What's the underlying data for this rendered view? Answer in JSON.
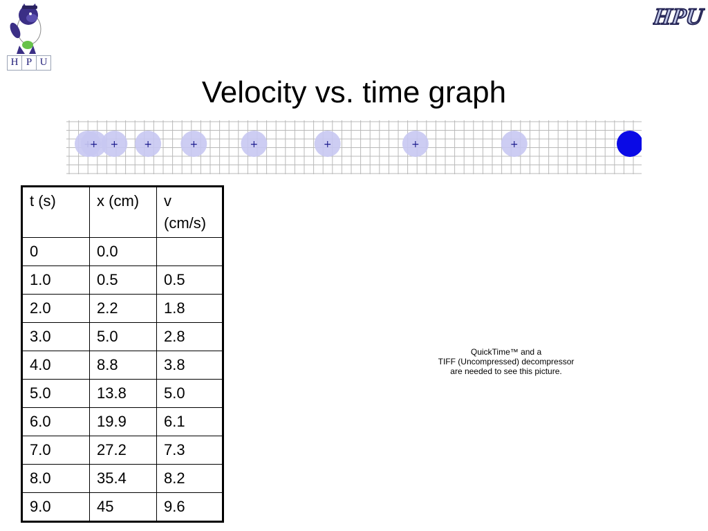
{
  "header": {
    "title": "Velocity vs. time graph",
    "mascot_letters": [
      "H",
      "P",
      "U"
    ],
    "logo_text": "HPU"
  },
  "colors": {
    "ghost_ball": "#c8c8f2",
    "current_ball": "#0a0ae6",
    "grid_line": "#b9b9b9",
    "cross_mark": "#1a1a8c"
  },
  "motion_strip": {
    "ghost_marker": "+",
    "ghost_positions_cm": [
      0.0,
      0.5,
      2.2,
      5.0,
      8.8,
      13.8,
      19.9,
      27.2,
      35.4
    ],
    "current_position_cm": 45
  },
  "table": {
    "headers": [
      "t (s)",
      "x (cm)",
      "v (cm/s)"
    ],
    "rows": [
      [
        "0",
        "0.0",
        ""
      ],
      [
        "1.0",
        "0.5",
        "0.5"
      ],
      [
        "2.0",
        "2.2",
        "1.8"
      ],
      [
        "3.0",
        "5.0",
        "2.8"
      ],
      [
        "4.0",
        "8.8",
        "3.8"
      ],
      [
        "5.0",
        "13.8",
        "5.0"
      ],
      [
        "6.0",
        "19.9",
        "6.1"
      ],
      [
        "7.0",
        "27.2",
        "7.3"
      ],
      [
        "8.0",
        "35.4",
        "8.2"
      ],
      [
        "9.0",
        "45",
        "9.6"
      ]
    ]
  },
  "placeholder": {
    "lines": [
      "QuickTime™ and a",
      "TIFF (Uncompressed) decompressor",
      "are needed to see this picture."
    ]
  }
}
